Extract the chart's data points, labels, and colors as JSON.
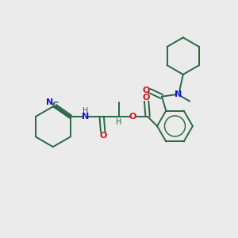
{
  "background_color": "#ebebeb",
  "bond_color": "#2a6648",
  "nitrogen_color": "#1515cc",
  "oxygen_color": "#cc1515",
  "figsize": [
    3.0,
    3.0
  ],
  "dpi": 100,
  "xlim": [
    0,
    10
  ],
  "ylim": [
    0,
    10
  ]
}
